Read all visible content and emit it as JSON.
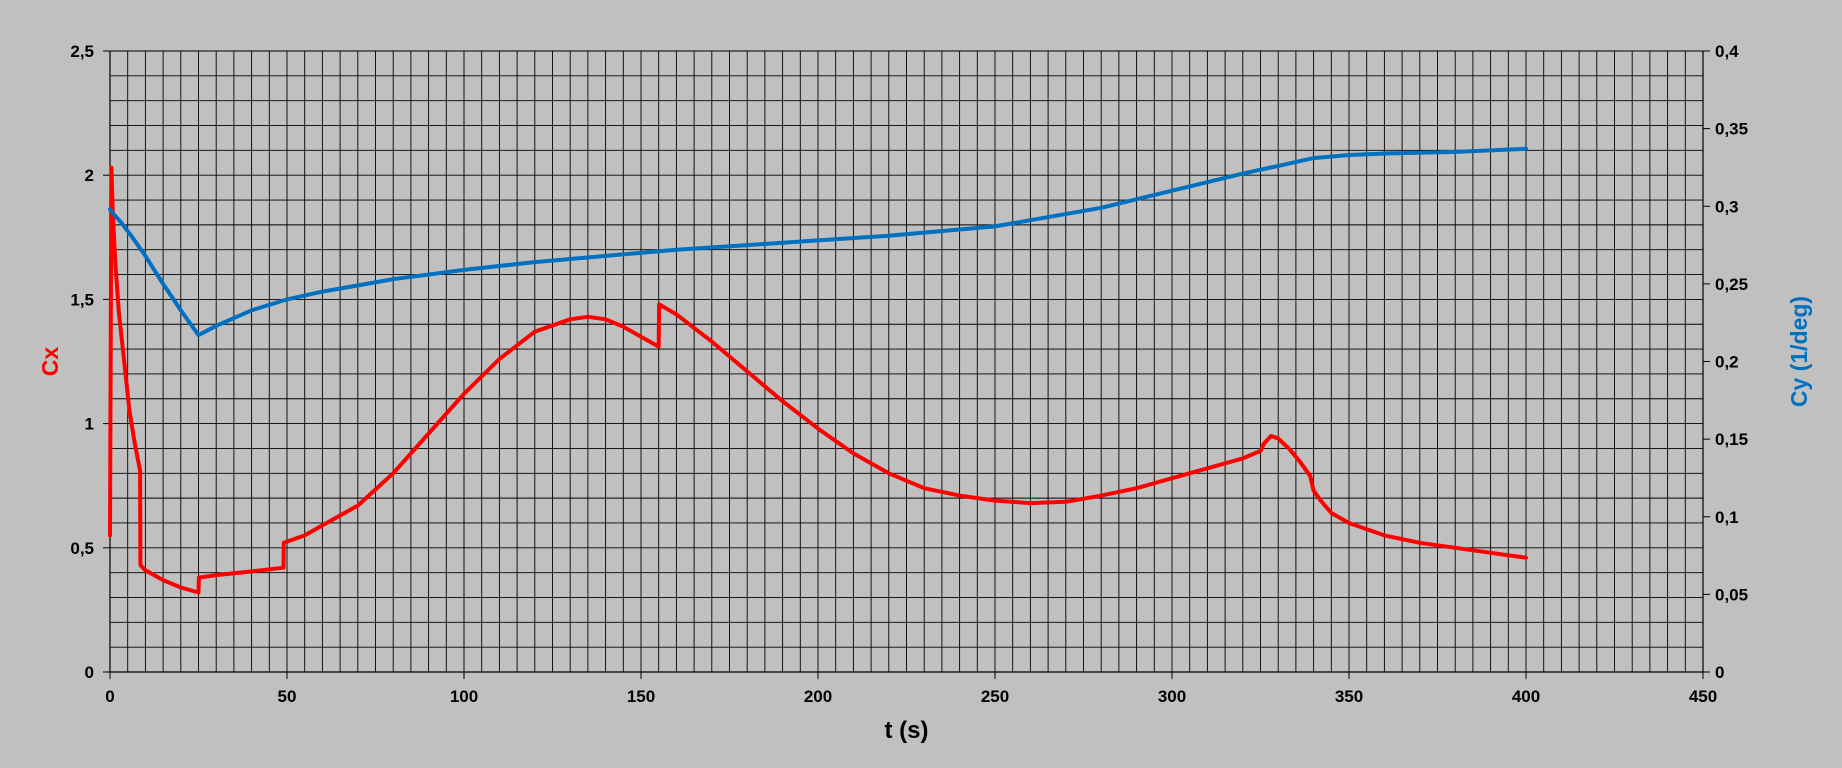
{
  "chart_data": {
    "type": "line",
    "title": "",
    "xlabel": "t (s)",
    "ylabel_left": "Cx",
    "ylabel_right": "Cy (1/deg)",
    "xlim": [
      0,
      450
    ],
    "ylim_left": [
      0,
      2.5
    ],
    "ylim_right": [
      0,
      0.4
    ],
    "grid": true,
    "background_color": "#c0c0c0",
    "x_ticks": [
      {
        "value": 0,
        "label": "0"
      },
      {
        "value": 50,
        "label": "50"
      },
      {
        "value": 100,
        "label": "100"
      },
      {
        "value": 150,
        "label": "150"
      },
      {
        "value": 200,
        "label": "200"
      },
      {
        "value": 250,
        "label": "250"
      },
      {
        "value": 300,
        "label": "300"
      },
      {
        "value": 350,
        "label": "350"
      },
      {
        "value": 400,
        "label": "400"
      },
      {
        "value": 450,
        "label": "450"
      }
    ],
    "y_left_ticks": [
      {
        "value": 0,
        "label": "0"
      },
      {
        "value": 0.5,
        "label": "0,5"
      },
      {
        "value": 1,
        "label": "1"
      },
      {
        "value": 1.5,
        "label": "1,5"
      },
      {
        "value": 2,
        "label": "2"
      },
      {
        "value": 2.5,
        "label": "2,5"
      }
    ],
    "y_right_ticks": [
      {
        "value": 0,
        "label": "0"
      },
      {
        "value": 0.05,
        "label": "0,05"
      },
      {
        "value": 0.1,
        "label": "0,1"
      },
      {
        "value": 0.15,
        "label": "0,15"
      },
      {
        "value": 0.2,
        "label": "0,2"
      },
      {
        "value": 0.25,
        "label": "0,25"
      },
      {
        "value": 0.3,
        "label": "0,3"
      },
      {
        "value": 0.35,
        "label": "0,35"
      },
      {
        "value": 0.4,
        "label": "0,4"
      }
    ],
    "series": [
      {
        "axis": "left",
        "color": "#ff0000",
        "x": [
          0,
          0.4,
          0.8,
          1.5,
          2.5,
          4,
          5.5,
          7,
          8.5,
          8.6,
          10,
          15,
          20,
          25,
          25.1,
          30,
          40,
          49,
          49.1,
          55,
          60,
          70,
          80,
          90,
          100,
          110,
          120,
          130,
          135,
          140,
          145,
          150,
          155,
          155.1,
          160,
          170,
          180,
          190,
          200,
          210,
          220,
          230,
          240,
          250,
          260,
          270,
          280,
          290,
          300,
          310,
          320,
          325,
          326,
          328,
          330,
          333,
          336,
          339,
          340,
          342,
          345,
          350,
          360,
          370,
          380,
          390,
          400
        ],
        "y": [
          0.55,
          2.03,
          1.85,
          1.65,
          1.45,
          1.25,
          1.05,
          0.92,
          0.81,
          0.43,
          0.41,
          0.37,
          0.34,
          0.32,
          0.38,
          0.39,
          0.405,
          0.42,
          0.52,
          0.55,
          0.59,
          0.67,
          0.8,
          0.96,
          1.12,
          1.26,
          1.37,
          1.42,
          1.43,
          1.42,
          1.39,
          1.35,
          1.31,
          1.48,
          1.44,
          1.33,
          1.21,
          1.09,
          0.98,
          0.88,
          0.8,
          0.74,
          0.71,
          0.69,
          0.68,
          0.685,
          0.71,
          0.74,
          0.78,
          0.82,
          0.86,
          0.89,
          0.92,
          0.95,
          0.94,
          0.9,
          0.85,
          0.79,
          0.73,
          0.69,
          0.64,
          0.6,
          0.55,
          0.52,
          0.5,
          0.48,
          0.46
        ]
      },
      {
        "axis": "right",
        "color": "#0070c0",
        "x": [
          0,
          1,
          3,
          6,
          10,
          15,
          20,
          25,
          30,
          40,
          50,
          60,
          80,
          100,
          120,
          140,
          160,
          180,
          200,
          220,
          240,
          250,
          260,
          280,
          300,
          320,
          330,
          340,
          350,
          360,
          380,
          400
        ],
        "y": [
          0.298,
          0.295,
          0.29,
          0.281,
          0.268,
          0.25,
          0.233,
          0.217,
          0.223,
          0.233,
          0.24,
          0.245,
          0.253,
          0.259,
          0.264,
          0.268,
          0.272,
          0.275,
          0.278,
          0.281,
          0.285,
          0.287,
          0.291,
          0.299,
          0.31,
          0.321,
          0.326,
          0.331,
          0.333,
          0.334,
          0.335,
          0.337
        ]
      }
    ]
  }
}
